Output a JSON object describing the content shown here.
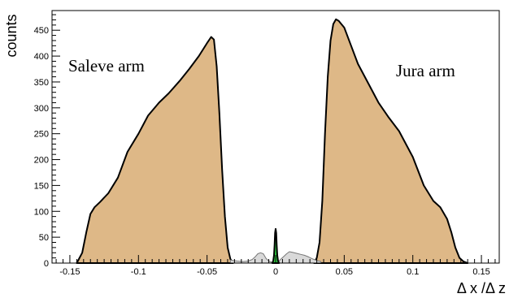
{
  "chart_data": {
    "type": "area",
    "xlabel": "Δ x /Δ z",
    "ylabel": "counts",
    "xlim": [
      -0.163,
      0.163
    ],
    "ylim": [
      0,
      488
    ],
    "xticks": [
      -0.15,
      -0.1,
      -0.05,
      0,
      0.05,
      0.1,
      0.15
    ],
    "xtick_labels": [
      "-0.15",
      "-0.1",
      "-0.05",
      "0",
      "0.05",
      "0.1",
      "0.15"
    ],
    "yticks": [
      0,
      50,
      100,
      150,
      200,
      250,
      300,
      350,
      400,
      450
    ],
    "ytick_labels": [
      "0",
      "50",
      "100",
      "150",
      "200",
      "250",
      "300",
      "350",
      "400",
      "450"
    ],
    "annotations": [
      "Saleve arm",
      "Jura arm"
    ],
    "grid": false,
    "colors": {
      "arm_fill": "#deb887",
      "outline": "#000000",
      "gray_fill": "#d9d9d9",
      "gray_line": "#777777",
      "green_fill": "#2ecc40"
    },
    "series": [
      {
        "color": "#deb887",
        "x": [
          -0.145,
          -0.141,
          -0.138,
          -0.135,
          -0.132,
          -0.128,
          -0.122,
          -0.115,
          -0.108,
          -0.1,
          -0.093,
          -0.085,
          -0.078,
          -0.07,
          -0.063,
          -0.056,
          -0.05,
          -0.047,
          -0.045,
          -0.043,
          -0.041,
          -0.039,
          -0.037,
          -0.035,
          -0.033,
          -0.031
        ],
        "y": [
          0,
          20,
          60,
          95,
          108,
          118,
          135,
          165,
          215,
          250,
          285,
          310,
          328,
          352,
          375,
          400,
          425,
          437,
          432,
          380,
          290,
          180,
          90,
          30,
          8,
          0
        ]
      },
      {
        "color": "#deb887",
        "x": [
          0.028,
          0.03,
          0.032,
          0.034,
          0.036,
          0.038,
          0.04,
          0.042,
          0.044,
          0.046,
          0.05,
          0.055,
          0.06,
          0.067,
          0.075,
          0.082,
          0.09,
          0.1,
          0.108,
          0.115,
          0.12,
          0.125,
          0.128,
          0.131,
          0.134,
          0.137,
          0.14
        ],
        "y": [
          0,
          10,
          40,
          120,
          250,
          360,
          430,
          462,
          471,
          468,
          455,
          420,
          385,
          350,
          310,
          283,
          255,
          205,
          150,
          120,
          108,
          85,
          60,
          30,
          10,
          3,
          0
        ]
      },
      {
        "color": "#d9d9d9",
        "x": [
          -0.033,
          -0.028,
          -0.024,
          -0.02,
          -0.017,
          -0.015,
          -0.013,
          -0.011,
          -0.009,
          -0.007,
          -0.005,
          -0.003,
          -0.002,
          0.002,
          0.004,
          0.006,
          0.008,
          0.01,
          0.012,
          0.015,
          0.018,
          0.021,
          0.024,
          0.027,
          0.03,
          0.033
        ],
        "y": [
          6,
          4,
          3,
          4,
          7,
          12,
          18,
          20,
          18,
          9,
          4,
          2,
          1,
          3,
          8,
          13,
          18,
          22,
          21,
          19,
          17,
          15,
          12,
          8,
          5,
          3
        ]
      },
      {
        "color": "#2ecc40",
        "x": [
          -0.0025,
          -0.0018,
          -0.0012,
          -0.0008,
          -0.0004,
          0,
          0.0004,
          0.0008,
          0.0012,
          0.0018,
          0.0025
        ],
        "y": [
          0,
          4,
          15,
          35,
          58,
          66,
          58,
          35,
          15,
          4,
          0
        ]
      }
    ]
  }
}
